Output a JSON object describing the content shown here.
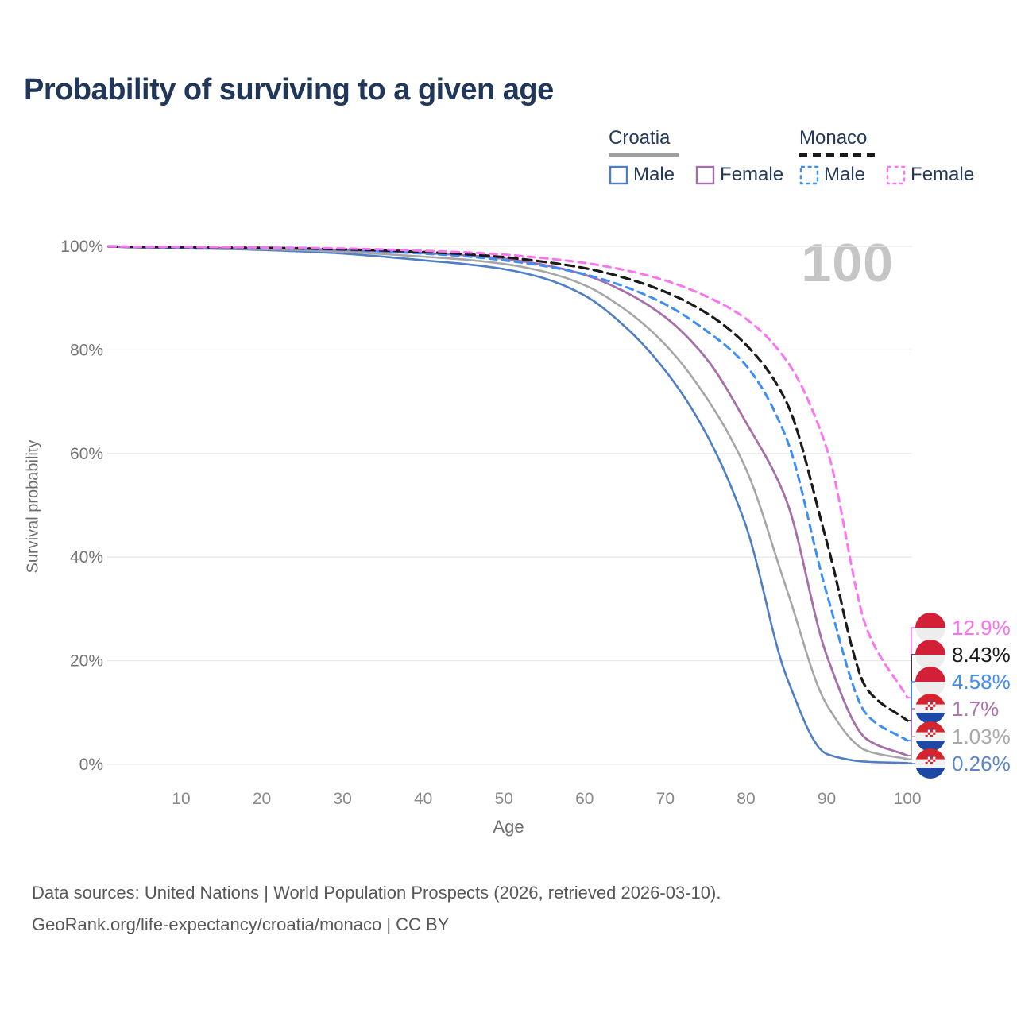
{
  "title": "Probability of surviving to a given age",
  "watermark": "100",
  "legend": {
    "groups": [
      {
        "label": "Croatia",
        "line_style": "solid",
        "line_color": "#9e9e9e",
        "items": [
          {
            "label": "Male",
            "color": "#4e7ec5",
            "dashed": false
          },
          {
            "label": "Female",
            "color": "#a76fa9",
            "dashed": false
          }
        ]
      },
      {
        "label": "Monaco",
        "line_style": "dashed",
        "line_color": "#1a1a1a",
        "items": [
          {
            "label": "Male",
            "color": "#3e8ef6",
            "dashed": true
          },
          {
            "label": "Female",
            "color": "#fb74f0",
            "dashed": true
          }
        ]
      }
    ]
  },
  "chart_data": {
    "type": "line",
    "title": "Probability of surviving to a given age",
    "xlabel": "Age",
    "ylabel": "Survival probability",
    "xlim": [
      1,
      100
    ],
    "ylim": [
      0,
      100
    ],
    "xticks": [
      10,
      20,
      30,
      40,
      50,
      60,
      70,
      80,
      90,
      100
    ],
    "ytick_labels": [
      "0%",
      "20%",
      "40%",
      "60%",
      "80%",
      "100%"
    ],
    "yticks": [
      0,
      20,
      40,
      60,
      80,
      100
    ],
    "grid": "horizontal",
    "legend_position": "top-right",
    "x": [
      0,
      5,
      10,
      15,
      20,
      25,
      30,
      35,
      40,
      45,
      50,
      55,
      60,
      65,
      70,
      75,
      80,
      85,
      90,
      95,
      100
    ],
    "series": [
      {
        "name": "Croatia Male",
        "country": "croatia",
        "sex": "male",
        "color": "#4e7ec5",
        "dashed": false,
        "width": 2.6,
        "values": [
          100,
          99.75,
          99.6,
          99.5,
          99.3,
          99.0,
          98.6,
          98.0,
          97.3,
          96.6,
          95.6,
          93.8,
          90.5,
          84.5,
          76.0,
          64.0,
          46.0,
          17.0,
          2.0,
          0.5,
          0.26
        ],
        "end_label": "0.26%",
        "end_value": 0.26,
        "label_color": "#5b87ca"
      },
      {
        "name": "Croatia",
        "country": "croatia",
        "sex": "both",
        "color": "#a6a6a6",
        "dashed": false,
        "width": 2.6,
        "values": [
          100,
          99.8,
          99.68,
          99.58,
          99.45,
          99.25,
          98.95,
          98.5,
          98.0,
          97.45,
          96.6,
          95.1,
          92.5,
          87.8,
          81.0,
          71.0,
          57.0,
          34.0,
          11.5,
          2.6,
          1.03
        ],
        "end_label": "1.03%",
        "end_value": 1.03,
        "label_color": "#a9a9a9"
      },
      {
        "name": "Croatia Female",
        "country": "croatia",
        "sex": "female",
        "color": "#a76fa9",
        "dashed": false,
        "width": 2.8,
        "values": [
          100,
          99.85,
          99.77,
          99.68,
          99.6,
          99.5,
          99.3,
          99.0,
          98.7,
          98.3,
          97.6,
          96.4,
          94.5,
          91.2,
          86.3,
          78.5,
          66.0,
          51.0,
          21.0,
          4.8,
          1.7
        ],
        "end_label": "1.7%",
        "end_value": 1.7,
        "label_color": "#ad74ab"
      },
      {
        "name": "Monaco Male",
        "country": "monaco",
        "sex": "male",
        "color": "#3e8ef6",
        "dashed": true,
        "width": 3,
        "values": [
          100,
          99.85,
          99.8,
          99.73,
          99.65,
          99.5,
          99.3,
          99.0,
          98.6,
          98.1,
          97.3,
          96.2,
          94.6,
          92.2,
          88.8,
          83.8,
          77.0,
          63.0,
          33.0,
          9.5,
          4.58
        ],
        "end_label": "4.58%",
        "end_value": 4.58,
        "label_color": "#3e8ef6"
      },
      {
        "name": "Monaco",
        "country": "monaco",
        "sex": "both",
        "color": "#1a1a1a",
        "dashed": true,
        "width": 3.2,
        "values": [
          100,
          99.88,
          99.83,
          99.77,
          99.7,
          99.6,
          99.42,
          99.2,
          98.9,
          98.5,
          97.9,
          97.0,
          95.8,
          93.9,
          91.2,
          87.2,
          81.0,
          70.0,
          43.0,
          14.5,
          8.43
        ],
        "end_label": "8.43%",
        "end_value": 8.43,
        "label_color": "#1a1a1a"
      },
      {
        "name": "Monaco Female",
        "country": "monaco",
        "sex": "female",
        "color": "#fb74f0",
        "dashed": true,
        "width": 3,
        "values": [
          100,
          99.9,
          99.87,
          99.82,
          99.77,
          99.7,
          99.58,
          99.4,
          99.15,
          98.85,
          98.4,
          97.7,
          96.8,
          95.4,
          93.4,
          90.4,
          86.0,
          78.0,
          61.0,
          26.0,
          12.9
        ],
        "end_label": "12.9%",
        "end_value": 12.9,
        "label_color": "#fd6ef2"
      }
    ],
    "end_label_order": [
      "Monaco Female",
      "Monaco",
      "Monaco Male",
      "Croatia Female",
      "Croatia",
      "Croatia Male"
    ]
  },
  "flags": {
    "croatia": {
      "red": "#d8232a",
      "white": "#f2f2f2",
      "blue": "#1c49a5"
    },
    "monaco": {
      "red": "#d32036",
      "white": "#ededed"
    }
  },
  "footer": {
    "line1": "Data sources: United Nations | World Population Prospects (2026, retrieved 2026-03-10).",
    "line2": "GeoRank.org/life-expectancy/croatia/monaco | CC BY"
  }
}
